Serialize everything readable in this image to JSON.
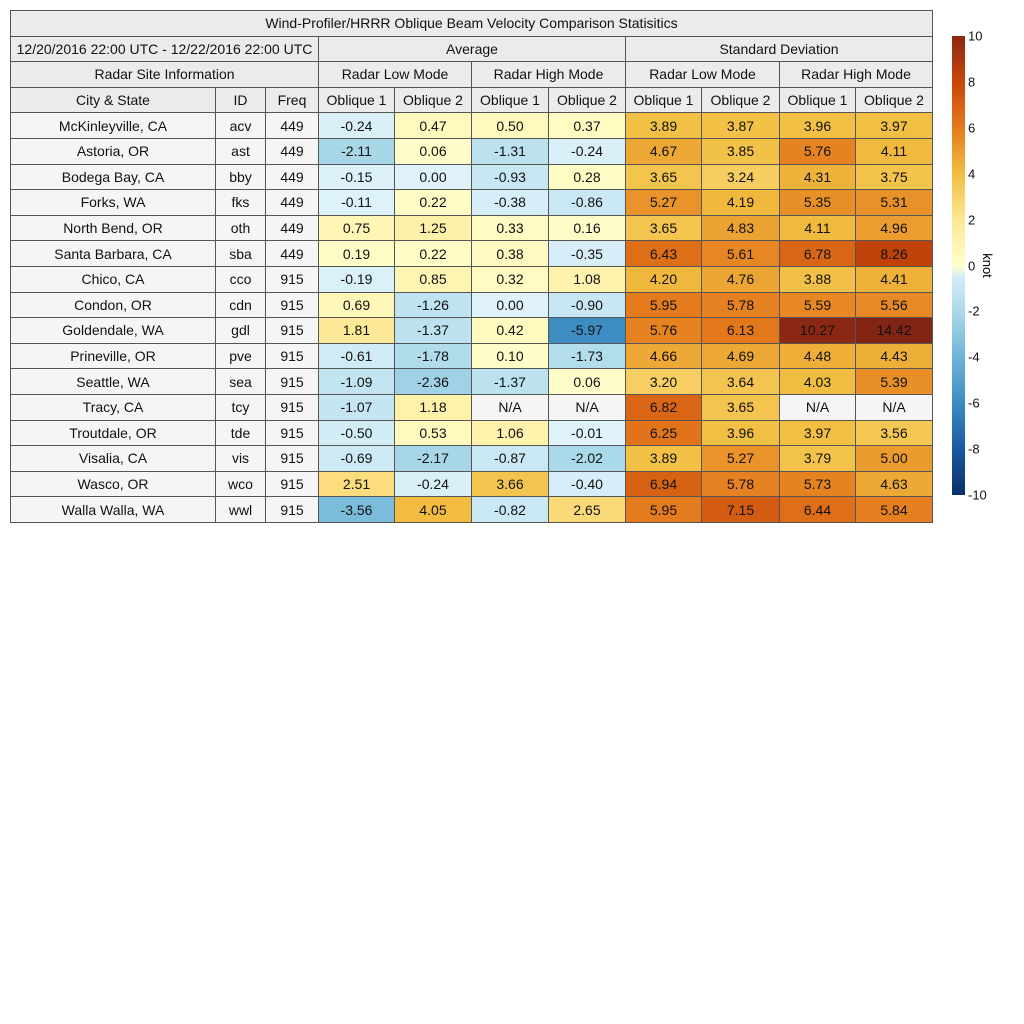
{
  "chart_data": {
    "type": "table",
    "title": "Wind-Profiler/HRRR Oblique Beam Velocity Comparison Statisitics",
    "period": "12/20/2016 22:00 UTC - 12/22/2016 22:00 UTC",
    "groups": [
      "Average",
      "Standard Deviation"
    ],
    "site_info_label": "Radar Site Information",
    "modes": [
      "Radar Low Mode",
      "Radar High Mode"
    ],
    "columns": [
      "City & State",
      "ID",
      "Freq",
      "Oblique 1",
      "Oblique 2",
      "Oblique 1",
      "Oblique 2",
      "Oblique 1",
      "Oblique 2",
      "Oblique 1",
      "Oblique 2"
    ],
    "rows": [
      [
        "McKinleyville, CA",
        "acv",
        "449",
        "-0.24",
        "0.47",
        "0.50",
        "0.37",
        "3.89",
        "3.87",
        "3.96",
        "3.97"
      ],
      [
        "Astoria, OR",
        "ast",
        "449",
        "-2.11",
        "0.06",
        "-1.31",
        "-0.24",
        "4.67",
        "3.85",
        "5.76",
        "4.11"
      ],
      [
        "Bodega Bay, CA",
        "bby",
        "449",
        "-0.15",
        "0.00",
        "-0.93",
        "0.28",
        "3.65",
        "3.24",
        "4.31",
        "3.75"
      ],
      [
        "Forks, WA",
        "fks",
        "449",
        "-0.11",
        "0.22",
        "-0.38",
        "-0.86",
        "5.27",
        "4.19",
        "5.35",
        "5.31"
      ],
      [
        "North Bend, OR",
        "oth",
        "449",
        "0.75",
        "1.25",
        "0.33",
        "0.16",
        "3.65",
        "4.83",
        "4.11",
        "4.96"
      ],
      [
        "Santa Barbara, CA",
        "sba",
        "449",
        "0.19",
        "0.22",
        "0.38",
        "-0.35",
        "6.43",
        "5.61",
        "6.78",
        "8.26"
      ],
      [
        "Chico, CA",
        "cco",
        "915",
        "-0.19",
        "0.85",
        "0.32",
        "1.08",
        "4.20",
        "4.76",
        "3.88",
        "4.41"
      ],
      [
        "Condon, OR",
        "cdn",
        "915",
        "0.69",
        "-1.26",
        "0.00",
        "-0.90",
        "5.95",
        "5.78",
        "5.59",
        "5.56"
      ],
      [
        "Goldendale, WA",
        "gdl",
        "915",
        "1.81",
        "-1.37",
        "0.42",
        "-5.97",
        "5.76",
        "6.13",
        "10.27",
        "14.42"
      ],
      [
        "Prineville, OR",
        "pve",
        "915",
        "-0.61",
        "-1.78",
        "0.10",
        "-1.73",
        "4.66",
        "4.69",
        "4.48",
        "4.43"
      ],
      [
        "Seattle, WA",
        "sea",
        "915",
        "-1.09",
        "-2.36",
        "-1.37",
        "0.06",
        "3.20",
        "3.64",
        "4.03",
        "5.39"
      ],
      [
        "Tracy, CA",
        "tcy",
        "915",
        "-1.07",
        "1.18",
        "N/A",
        "N/A",
        "6.82",
        "3.65",
        "N/A",
        "N/A"
      ],
      [
        "Troutdale, OR",
        "tde",
        "915",
        "-0.50",
        "0.53",
        "1.06",
        "-0.01",
        "6.25",
        "3.96",
        "3.97",
        "3.56"
      ],
      [
        "Visalia, CA",
        "vis",
        "915",
        "-0.69",
        "-2.17",
        "-0.87",
        "-2.02",
        "3.89",
        "5.27",
        "3.79",
        "5.00"
      ],
      [
        "Wasco, OR",
        "wco",
        "915",
        "2.51",
        "-0.24",
        "3.66",
        "-0.40",
        "6.94",
        "5.78",
        "5.73",
        "4.63"
      ],
      [
        "Walla Walla, WA",
        "wwl",
        "915",
        "-3.56",
        "4.05",
        "-0.82",
        "2.65",
        "5.95",
        "7.15",
        "6.44",
        "5.84"
      ]
    ],
    "colorbar": {
      "label": "knot",
      "range": [
        -10,
        10
      ],
      "ticks": [
        "10",
        "8",
        "6",
        "4",
        "2",
        "0",
        "-2",
        "-4",
        "-6",
        "-8",
        "-10"
      ]
    },
    "na_color": "#f5f5f5"
  }
}
